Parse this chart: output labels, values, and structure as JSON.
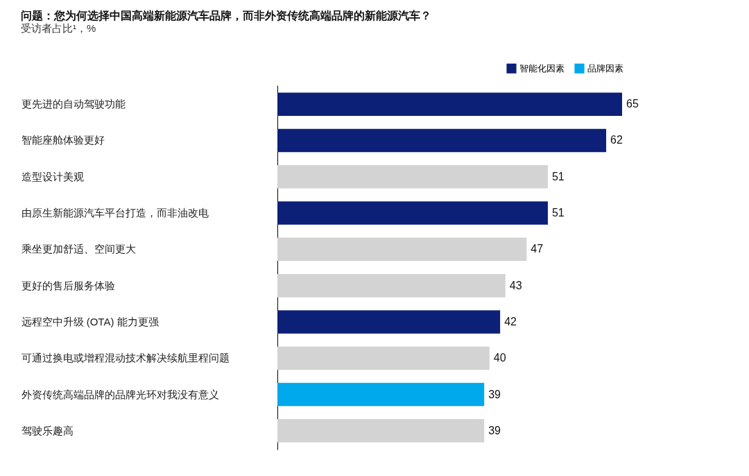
{
  "chart_data": {
    "type": "bar",
    "orientation": "horizontal",
    "data_labels": true,
    "legend": "top right",
    "title": "问题：您为何选择中国高端新能源汽车品牌，而非外资传统高端品牌的新能源汽车？",
    "subtitle": "受访者占比¹，%",
    "categories": [
      "更先进的自动驾驶功能",
      "智能座舱体验更好",
      "造型设计美观",
      "由原生新能源汽车平台打造，而非油改电",
      "乘坐更加舒适、空间更大",
      "更好的售后服务体验",
      "远程空中升级 (OTA) 能力更强",
      "可通过换电或增程混动技术解决续航里程问题",
      "外资传统高端品牌的品牌光环对我没有意义",
      "驾驶乐趣高"
    ],
    "series": [
      {
        "name": "智能化因素",
        "color": "#0c2078",
        "values": [
          65,
          62,
          null,
          51,
          null,
          null,
          42,
          null,
          null,
          null
        ]
      },
      {
        "name": "品牌因素",
        "color": "#00a8ec",
        "values": [
          null,
          null,
          null,
          null,
          null,
          null,
          null,
          null,
          39,
          null
        ]
      },
      {
        "color": "#d3d3d3",
        "values": [
          null,
          null,
          51,
          null,
          47,
          43,
          null,
          40,
          null,
          39
        ]
      }
    ]
  }
}
